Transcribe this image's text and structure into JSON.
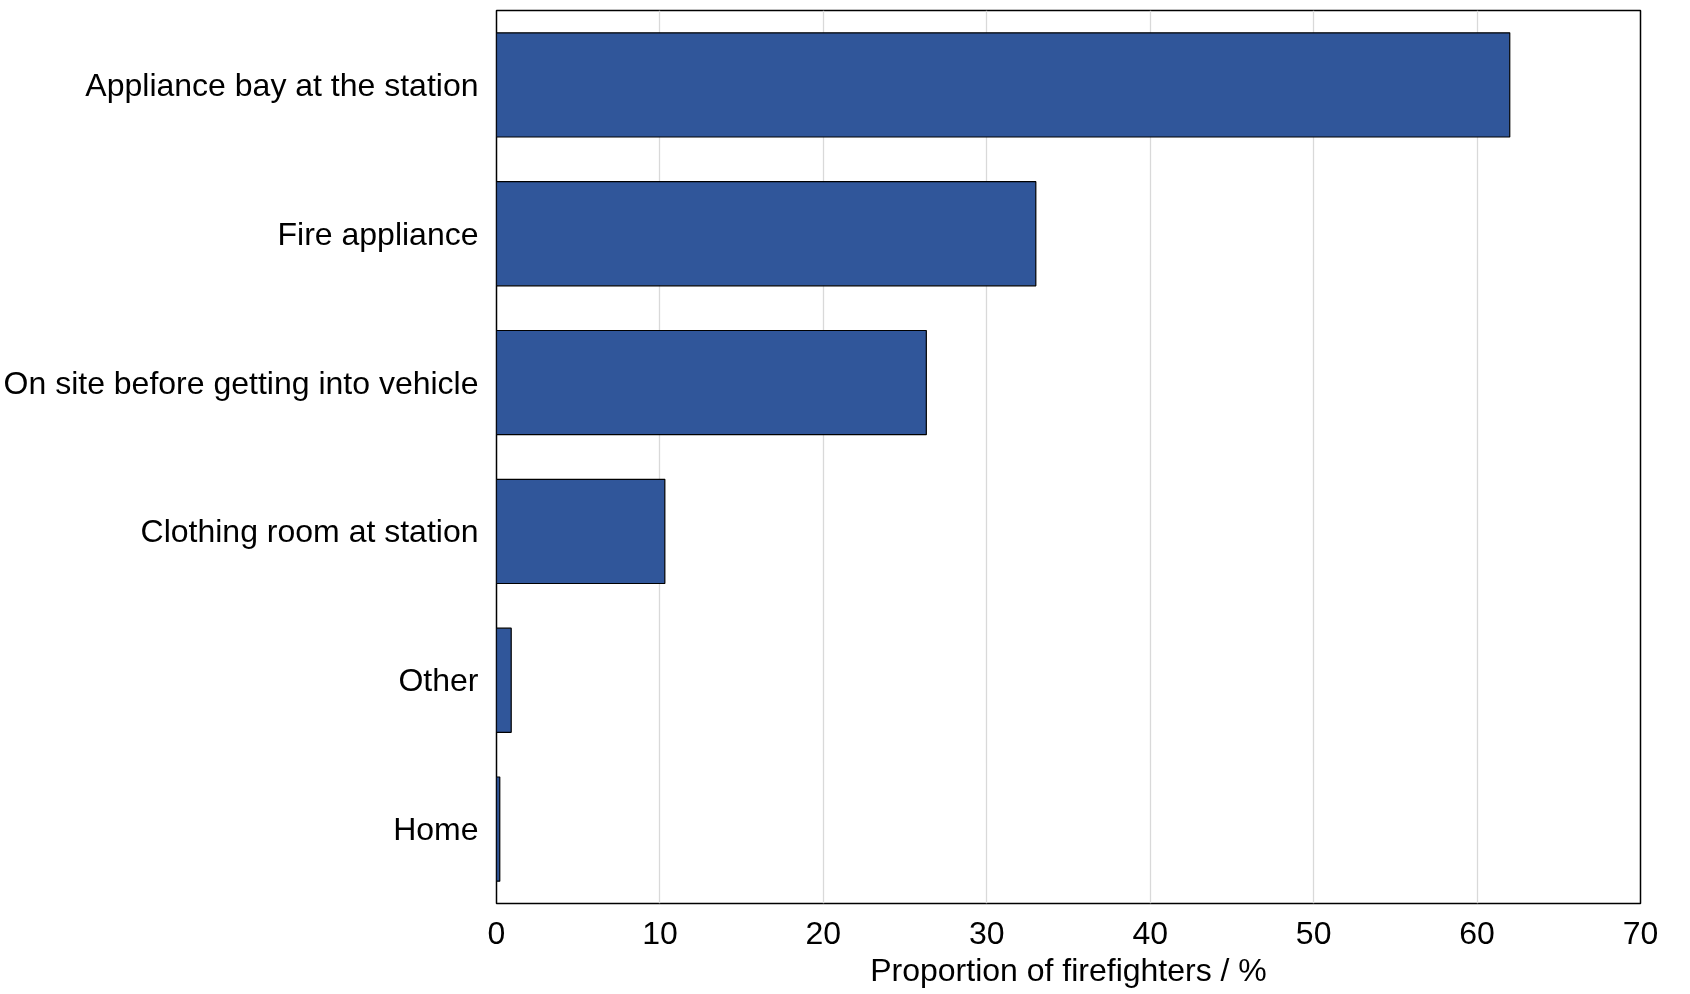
{
  "chart_data": {
    "type": "bar",
    "orientation": "horizontal",
    "xlabel": "Proportion of firefighters / %",
    "categories": [
      "Appliance bay at the station",
      "Fire appliance",
      "On site before getting into vehicle",
      "Clothing room at station",
      "Other",
      "Home"
    ],
    "values": [
      62.0,
      33.0,
      26.3,
      10.3,
      0.9,
      0.2
    ],
    "color": "#30569a",
    "xlim": [
      0,
      70
    ],
    "xticks": [
      0,
      10,
      20,
      30,
      40,
      50,
      60,
      70
    ],
    "grid": "x"
  }
}
